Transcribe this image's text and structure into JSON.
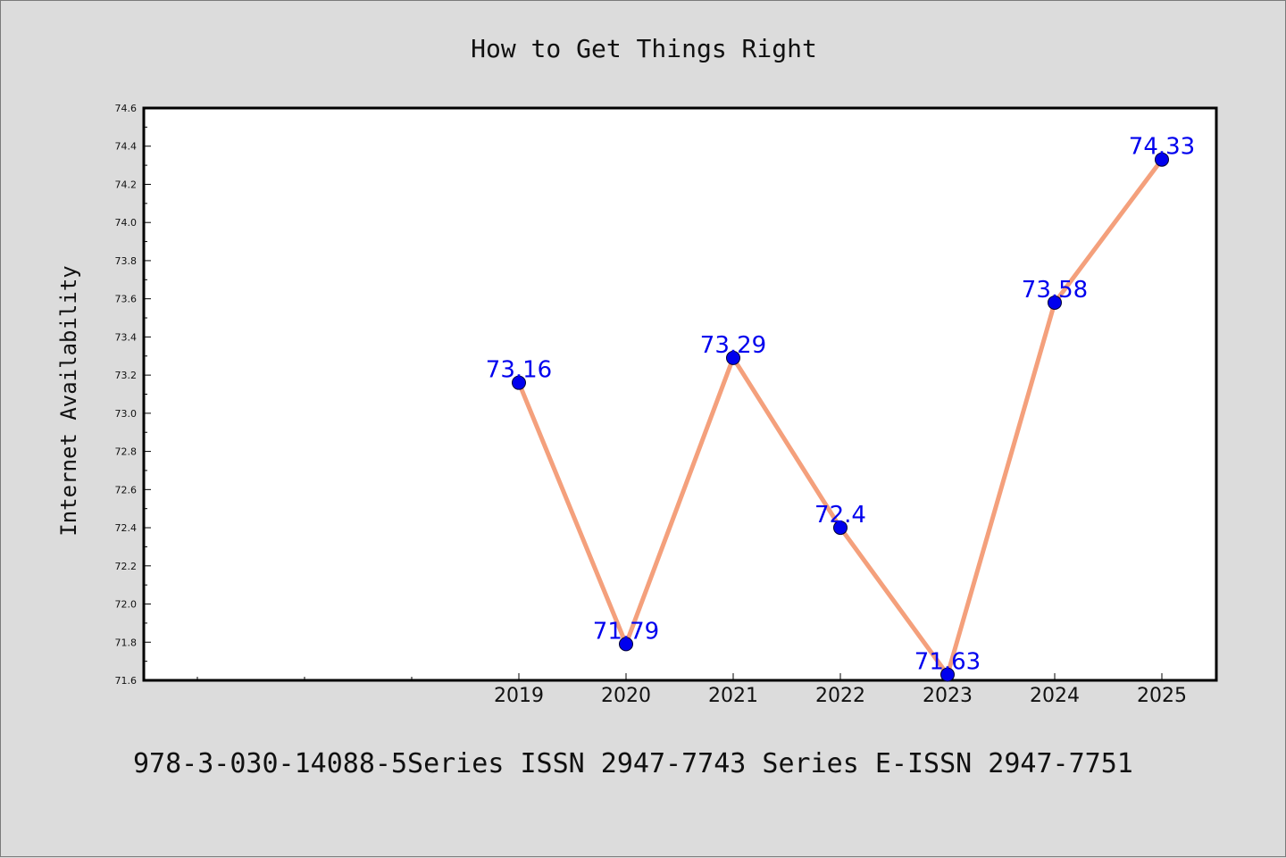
{
  "chart_data": {
    "type": "line",
    "title": "How to Get Things Right",
    "ylabel": "Internet Availability",
    "xlabel": "",
    "x": [
      "2019",
      "2020",
      "2021",
      "2022",
      "2023",
      "2024",
      "2025"
    ],
    "series": [
      {
        "values": [
          73.16,
          71.79,
          73.29,
          72.4,
          71.63,
          73.58,
          74.33
        ]
      }
    ],
    "data_labels": [
      "73.16",
      "71.79",
      "73.29",
      "72.4",
      "71.63",
      "73.58",
      "74.33"
    ],
    "ylim": [
      71.6,
      74.6
    ],
    "yticks": [
      "71.6",
      "71.8",
      "72.0",
      "72.2",
      "72.4",
      "72.6",
      "72.8",
      "73.0",
      "73.2",
      "73.4",
      "73.6",
      "73.8",
      "74.0",
      "74.2",
      "74.4",
      "74.6"
    ],
    "grid": false,
    "legend": "none",
    "colors": {
      "line": "#f4a07c",
      "marker": "#0000ee",
      "label": "#0000ee",
      "background": "#dcdcdc",
      "plot_background": "#ffffff"
    }
  },
  "footer": "978-3-030-14088-5Series ISSN 2947-7743 Series E-ISSN 2947-7751"
}
